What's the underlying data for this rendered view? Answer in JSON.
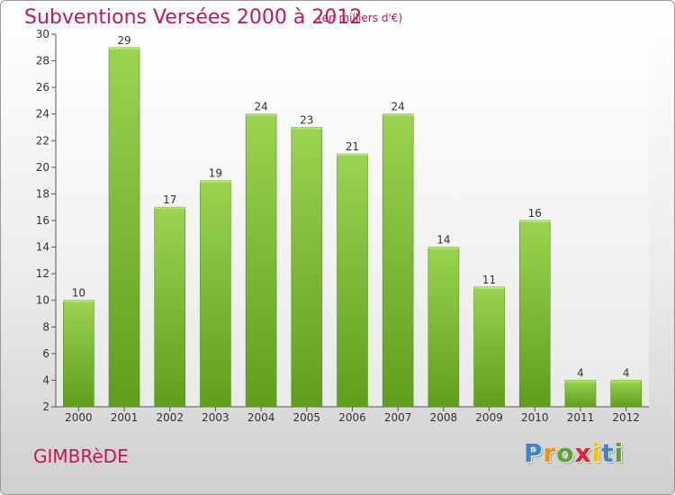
{
  "header": {
    "title": "Subventions Versées 2000 à 2012",
    "subtitle": "(en milliers d'€)"
  },
  "commune": "GIMBRèDE",
  "logo": {
    "letters": [
      "P",
      "r",
      "o",
      "x",
      "i",
      "t",
      "i"
    ],
    "colors": [
      "#3a86c8",
      "#f28c1a",
      "#5aa531",
      "#d6262f",
      "#f2c21a",
      "#3a86c8",
      "#5aa531"
    ]
  },
  "chart_data": {
    "type": "bar",
    "categories": [
      "2000",
      "2001",
      "2002",
      "2003",
      "2004",
      "2005",
      "2006",
      "2007",
      "2008",
      "2009",
      "2010",
      "2011",
      "2012"
    ],
    "values": [
      10,
      29,
      17,
      19,
      24,
      23,
      21,
      24,
      14,
      11,
      16,
      4,
      4
    ],
    "data_labels": [
      "10",
      "29",
      "17",
      "19",
      "24",
      "23",
      "21",
      "24",
      "14",
      "11",
      "16",
      "4",
      "4"
    ],
    "yticks": [
      "2",
      "4",
      "6",
      "8",
      "10",
      "12",
      "14",
      "16",
      "18",
      "20",
      "22",
      "24",
      "26",
      "28",
      "30"
    ],
    "ylim": [
      2,
      30
    ],
    "bar_color": "#7cc13a",
    "grid": false
  }
}
